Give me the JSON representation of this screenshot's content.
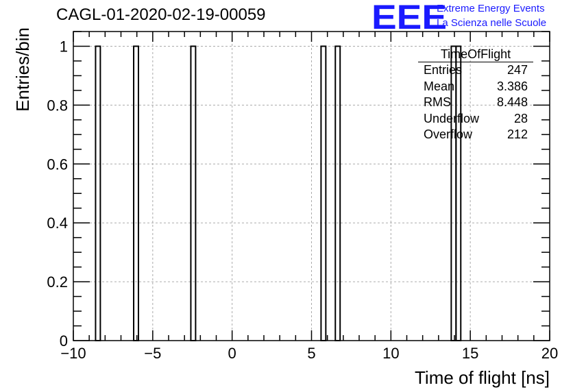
{
  "header": {
    "title": "CAGL-01-2020-02-19-00059",
    "logo_mark": "EEE",
    "logo_line1": "Extreme Energy Events",
    "logo_line2": "La Scienza nelle Scuole",
    "logo_color": "#1a1aff"
  },
  "stats_box": {
    "title": "TimeOfFlight",
    "rows": [
      {
        "label": "Entries",
        "value": "247"
      },
      {
        "label": "Mean",
        "value": "3.386"
      },
      {
        "label": "RMS",
        "value": "8.448"
      },
      {
        "label": "Underflow",
        "value": "28"
      },
      {
        "label": "Overflow",
        "value": "212"
      }
    ]
  },
  "chart_data": {
    "type": "bar",
    "title": "CAGL-01-2020-02-19-00059",
    "xlabel": "Time of flight [ns]",
    "ylabel": "Entries/bin",
    "xlim": [
      -10,
      20
    ],
    "ylim": [
      0,
      1.05
    ],
    "xticks": [
      -10,
      -5,
      0,
      5,
      10,
      15,
      20
    ],
    "yticks": [
      0,
      0.2,
      0.4,
      0.6,
      0.8,
      1
    ],
    "xtick_labels": [
      "−10",
      "−5",
      "0",
      "5",
      "10",
      "15",
      "20"
    ],
    "ytick_labels": [
      "0",
      "0.2",
      "0.4",
      "0.6",
      "0.8",
      "1"
    ],
    "grid": true,
    "bins": [
      {
        "x0": -8.6,
        "x1": -8.3,
        "value": 1
      },
      {
        "x0": -6.2,
        "x1": -5.9,
        "value": 1
      },
      {
        "x0": -2.6,
        "x1": -2.3,
        "value": 1
      },
      {
        "x0": 5.6,
        "x1": 5.9,
        "value": 1
      },
      {
        "x0": 6.5,
        "x1": 6.8,
        "value": 1
      },
      {
        "x0": 13.8,
        "x1": 14.1,
        "value": 1
      },
      {
        "x0": 14.1,
        "x1": 14.4,
        "value": 1
      }
    ]
  }
}
